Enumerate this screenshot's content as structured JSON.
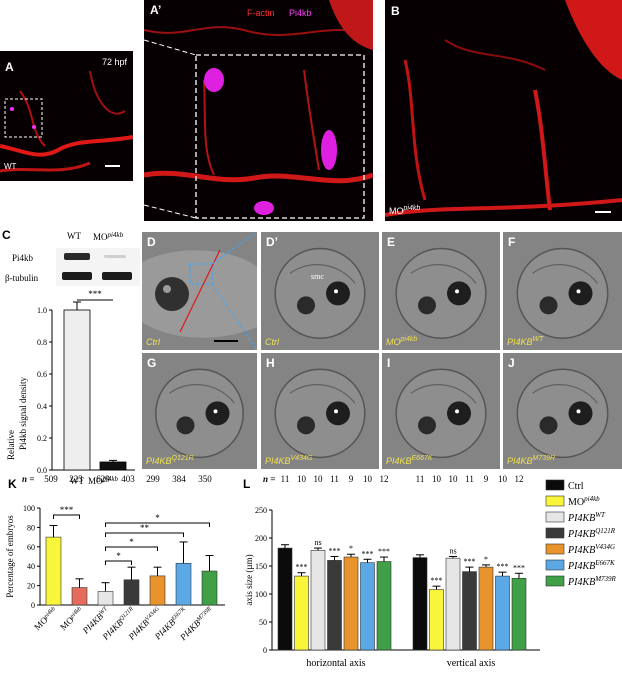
{
  "panels": {
    "A": {
      "letter": "A",
      "timepoint": "72 hpf",
      "genotype": "WT"
    },
    "A_prime": {
      "letter": "A’",
      "stain1": "F-actin",
      "stain2": "Pi4kb",
      "stain1_color": "#ff2020",
      "stain2_color": "#ff00ff"
    },
    "B": {
      "letter": "B",
      "condition_prefix": "MO",
      "condition_sup": "pi4kb"
    },
    "C": {
      "letter": "C",
      "col_wt": "WT",
      "col_mo": "MO",
      "col_mo_sup": "pi4kb",
      "row1": "Pi4kb",
      "row2": "β-tubulin",
      "ylabel_line1": "Pi4kb signal density",
      "ylabel_line2": "Relative",
      "sig": "***",
      "xt_wt": "WT",
      "xt_mo": "MO",
      "xt_mo_sup": "pi4kb"
    },
    "D": {
      "letter": "D",
      "label": "Ctrl"
    },
    "D_prime": {
      "letter": "D’",
      "label": "Ctrl",
      "smc": "smc"
    },
    "E": {
      "letter": "E",
      "label": "MO",
      "label_sup": "pi4kb"
    },
    "F": {
      "letter": "F",
      "label": "PI4KB",
      "label_sup": "WT"
    },
    "G": {
      "letter": "G",
      "label": "PI4KB",
      "label_sup": "Q121R"
    },
    "H": {
      "letter": "H",
      "label": "PI4KB",
      "label_sup": "V434G"
    },
    "I": {
      "letter": "I",
      "label": "PI4KB",
      "label_sup": "E667K"
    },
    "J": {
      "letter": "J",
      "label": "PI4KB",
      "label_sup": "M739R"
    },
    "K": {
      "letter": "K",
      "n_label": "n",
      "n_values": [
        "509",
        "223",
        "629",
        "403",
        "299",
        "384",
        "350"
      ],
      "ylabel": "Percentage of embryos",
      "sig1": "***",
      "sig2": "*",
      "sig3": "**",
      "sig4": "*",
      "sig5": "*"
    },
    "L": {
      "letter": "L",
      "n_label": "n",
      "n_values": [
        "11",
        "10",
        "10",
        "11",
        "9",
        "10",
        "12",
        "11",
        "10",
        "10",
        "11",
        "9",
        "10",
        "12"
      ],
      "ylabel": "axis size (µm)",
      "xl1": "horizontal axis",
      "xl2": "vertical axis"
    }
  },
  "legend": [
    {
      "label": "Ctrl",
      "sup": "",
      "color": "#0b0b0b",
      "italic": false
    },
    {
      "label": "MO",
      "sup": "pi4kb",
      "color": "#f8f53a",
      "italic": false
    },
    {
      "label": "PI4KB",
      "sup": "WT",
      "color": "#e6e6e6",
      "italic": true
    },
    {
      "label": "PI4KB",
      "sup": "Q121R",
      "color": "#3a3a3a",
      "italic": true
    },
    {
      "label": "PI4KB",
      "sup": "V434G",
      "color": "#e8932c",
      "italic": true
    },
    {
      "label": "PI4KB",
      "sup": "E667K",
      "color": "#5aa9e6",
      "italic": true
    },
    {
      "label": "PI4KB",
      "sup": "M739R",
      "color": "#3fa047",
      "italic": true
    }
  ],
  "chart_data": [
    {
      "panel": "C",
      "type": "bar",
      "categories": [
        "WT",
        "MOpi4kb"
      ],
      "values": [
        1.0,
        0.05
      ],
      "errors": [
        0.05,
        0.01
      ],
      "ylim": [
        0,
        1.0
      ],
      "yticks": [
        "0.0",
        "0.2",
        "0.4",
        "0.6",
        "0.8",
        "1.0"
      ],
      "colors": [
        "#eeeeee",
        "#111111"
      ]
    },
    {
      "panel": "K",
      "type": "bar",
      "categories": [
        "MOpi4kb",
        "MOpi4kb +PI4KBWT",
        "PI4KBWT",
        "PI4KBQ121R",
        "PI4KBV434G",
        "PI4KBE667K",
        "PI4KBM739R"
      ],
      "values": [
        70,
        18,
        14,
        26,
        30,
        43,
        35
      ],
      "errors": [
        12,
        9,
        9,
        13,
        9,
        22,
        16
      ],
      "ylim": [
        0,
        100
      ],
      "yticks": [
        "0",
        "20",
        "40",
        "60",
        "80",
        "100"
      ],
      "colors": [
        "#f8f53a",
        "#e46c5c",
        "#e6e6e6",
        "#3a3a3a",
        "#e8932c",
        "#5aa9e6",
        "#3fa047"
      ]
    },
    {
      "panel": "L",
      "type": "bar",
      "categories": [
        "horizontal axis",
        "vertical axis"
      ],
      "series": [
        {
          "name": "Ctrl",
          "values": [
            182,
            165
          ],
          "errors": [
            6,
            5
          ],
          "sig": [
            "",
            ""
          ]
        },
        {
          "name": "MOpi4kb",
          "values": [
            132,
            108
          ],
          "errors": [
            6,
            6
          ],
          "sig": [
            "***",
            "***"
          ]
        },
        {
          "name": "PI4KBWT",
          "values": [
            178,
            164
          ],
          "errors": [
            4,
            3
          ],
          "sig": [
            "ns",
            "ns"
          ]
        },
        {
          "name": "PI4KBQ121R",
          "values": [
            160,
            140
          ],
          "errors": [
            7,
            8
          ],
          "sig": [
            "***",
            "***"
          ]
        },
        {
          "name": "PI4KBV434G",
          "values": [
            166,
            148
          ],
          "errors": [
            5,
            4
          ],
          "sig": [
            "*",
            "*"
          ]
        },
        {
          "name": "PI4KBE667K",
          "values": [
            156,
            132
          ],
          "errors": [
            6,
            7
          ],
          "sig": [
            "***",
            "***"
          ]
        },
        {
          "name": "PI4KBM739R",
          "values": [
            158,
            128
          ],
          "errors": [
            8,
            9
          ],
          "sig": [
            "***",
            "***"
          ]
        }
      ],
      "ylim": [
        0,
        250
      ],
      "yticks": [
        "0",
        "50",
        "100",
        "150",
        "200",
        "250"
      ]
    }
  ]
}
